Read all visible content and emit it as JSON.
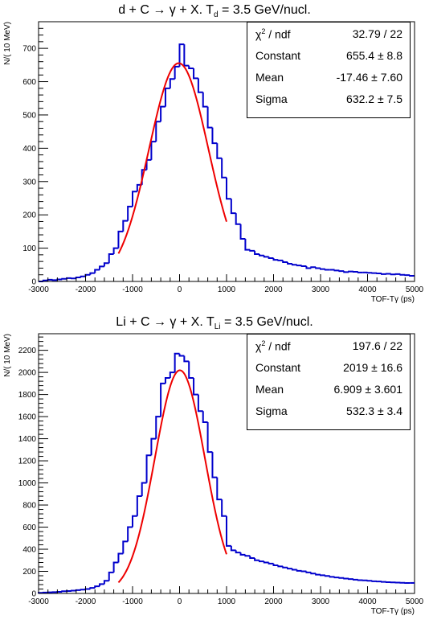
{
  "chart_data": [
    {
      "type": "bar",
      "title": {
        "pre": "d + C → γ + X. T",
        "sub": "d",
        "post": " = 3.5 GeV/nucl."
      },
      "xlabel": "TOF-Tγ (ps)",
      "ylabel": "N/( 10 MeV)",
      "xlim": [
        -3000,
        5000
      ],
      "ylim": [
        0,
        780
      ],
      "xticks": [
        -3000,
        -2000,
        -1000,
        0,
        1000,
        2000,
        3000,
        4000,
        5000
      ],
      "yticks": [
        0,
        100,
        200,
        300,
        400,
        500,
        600,
        700
      ],
      "bin_width": 100,
      "histogram_color": "#0000cc",
      "histogram_counts": [
        0,
        3,
        5,
        4,
        6,
        8,
        10,
        9,
        12,
        15,
        20,
        25,
        35,
        45,
        55,
        82,
        100,
        150,
        182,
        225,
        270,
        290,
        335,
        365,
        420,
        480,
        525,
        580,
        608,
        645,
        712,
        648,
        640,
        610,
        568,
        525,
        462,
        415,
        370,
        312,
        248,
        205,
        172,
        128,
        95,
        92,
        82,
        78,
        74,
        70,
        65,
        63,
        58,
        53,
        50,
        48,
        46,
        40,
        43,
        40,
        37,
        35,
        35,
        33,
        31,
        28,
        30,
        29,
        27,
        27,
        26,
        25,
        24,
        22,
        23,
        21,
        22,
        20,
        19,
        17
      ],
      "fit": {
        "name": "gaus",
        "color": "#ee0000",
        "constant": 655.4,
        "mean": -17.46,
        "sigma": 632.2,
        "range": [
          -1300,
          1000
        ]
      },
      "stats": [
        {
          "key": "χ",
          "sup": "2",
          "key_rest": " / ndf",
          "value": "32.79 / 22"
        },
        {
          "key": "Constant",
          "value": "655.4 ± 8.8"
        },
        {
          "key": "Mean",
          "value": "-17.46 ± 7.60"
        },
        {
          "key": "Sigma",
          "value": "632.2 ± 7.5"
        }
      ]
    },
    {
      "type": "bar",
      "title": {
        "pre": "Li + C → γ + X. T",
        "sub": "Li",
        "post": " = 3.5 GeV/nucl."
      },
      "xlabel": "TOF-Tγ (ps)",
      "ylabel": "N/( 10 MeV)",
      "xlim": [
        -3000,
        5000
      ],
      "ylim": [
        0,
        2350
      ],
      "xticks": [
        -3000,
        -2000,
        -1000,
        0,
        1000,
        2000,
        3000,
        4000,
        5000
      ],
      "yticks": [
        0,
        200,
        400,
        600,
        800,
        1000,
        1200,
        1400,
        1600,
        1800,
        2000,
        2200
      ],
      "bin_width": 100,
      "histogram_color": "#0000cc",
      "histogram_counts": [
        5,
        8,
        10,
        12,
        15,
        20,
        22,
        25,
        30,
        35,
        40,
        50,
        65,
        85,
        115,
        190,
        280,
        360,
        470,
        600,
        700,
        880,
        1000,
        1250,
        1400,
        1600,
        1900,
        1950,
        2000,
        2170,
        2150,
        2100,
        1950,
        1800,
        1650,
        1550,
        1280,
        1050,
        850,
        700,
        430,
        390,
        370,
        350,
        340,
        320,
        300,
        290,
        280,
        270,
        255,
        245,
        235,
        225,
        215,
        205,
        200,
        190,
        180,
        170,
        165,
        158,
        150,
        145,
        140,
        135,
        130,
        125,
        120,
        118,
        115,
        110,
        108,
        105,
        102,
        100,
        98,
        96,
        95,
        95
      ],
      "fit": {
        "name": "gaus",
        "color": "#ee0000",
        "constant": 2019,
        "mean": 6.909,
        "sigma": 532.3,
        "range": [
          -1300,
          1000
        ]
      },
      "stats": [
        {
          "key": "χ",
          "sup": "2",
          "key_rest": " / ndf",
          "value": "197.6 / 22"
        },
        {
          "key": "Constant",
          "value": "2019 ± 16.6"
        },
        {
          "key": "Mean",
          "value": "6.909 ± 3.601"
        },
        {
          "key": "Sigma",
          "value": "532.3 ± 3.4"
        }
      ]
    }
  ]
}
